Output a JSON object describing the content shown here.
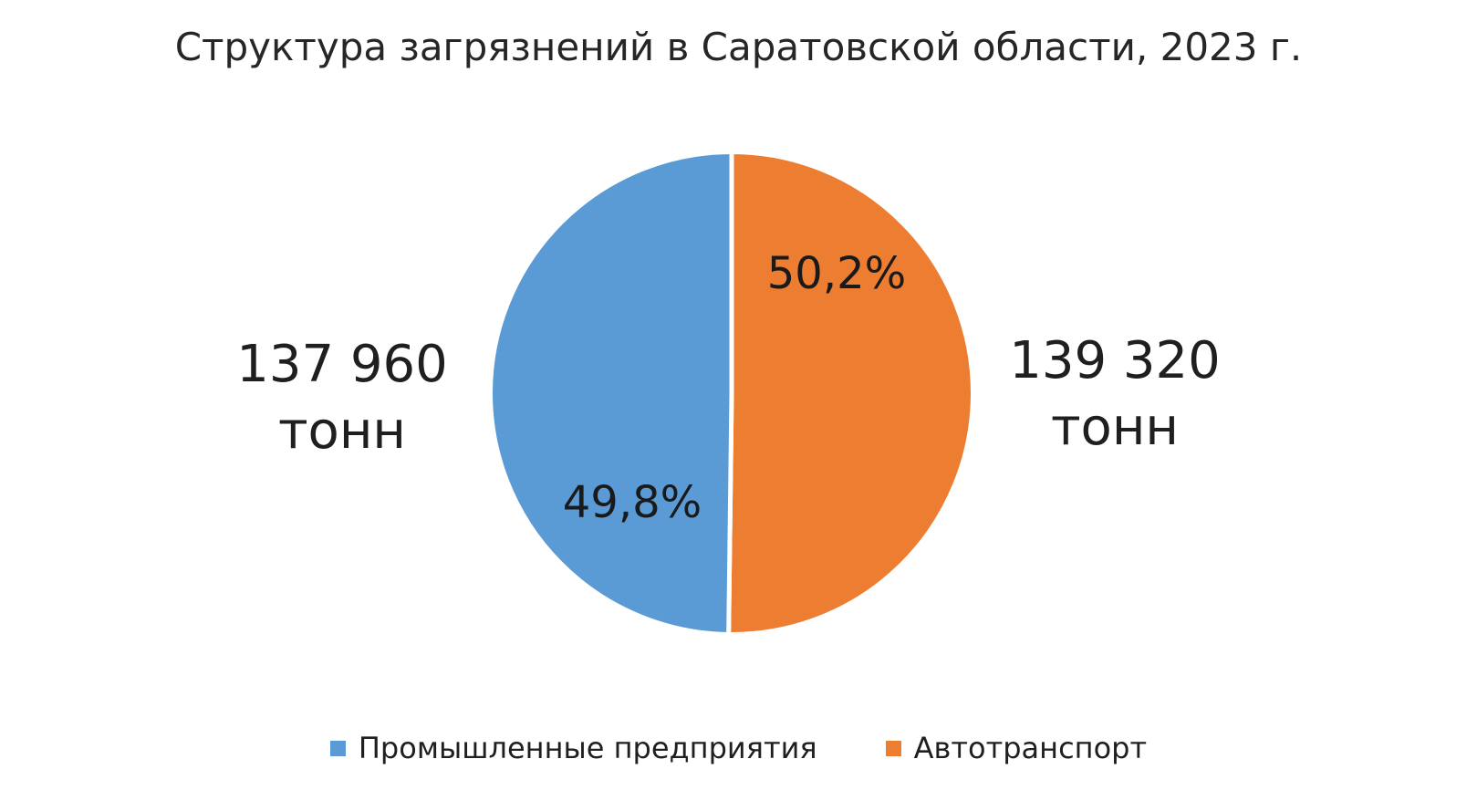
{
  "chart_data": {
    "type": "pie",
    "title": "Структура загрязнений в Саратовской области, 2023 г.",
    "unit_word": "тонн",
    "slices": [
      {
        "label": "Промышленные предприятия",
        "value": 137960,
        "value_display": "137 960",
        "percent_value": 49.8,
        "percent_display": "49,8%",
        "color": "#5B9BD5",
        "side": "left"
      },
      {
        "label": "Автотранспорт",
        "value": 139320,
        "value_display": "139 320",
        "percent_value": 50.2,
        "percent_display": "50,2%",
        "color": "#ED7D31",
        "side": "right"
      }
    ],
    "total_percent": 100,
    "draw": {
      "start_angle_deg": -90,
      "direction": "clockwise",
      "order": [
        1,
        0
      ],
      "divider_color": "#ffffff",
      "divider_width": 5
    },
    "legend": {
      "position": "bottom"
    },
    "background": "#ffffff",
    "title_color": "#262626",
    "label_color": "#1f1f1f"
  }
}
